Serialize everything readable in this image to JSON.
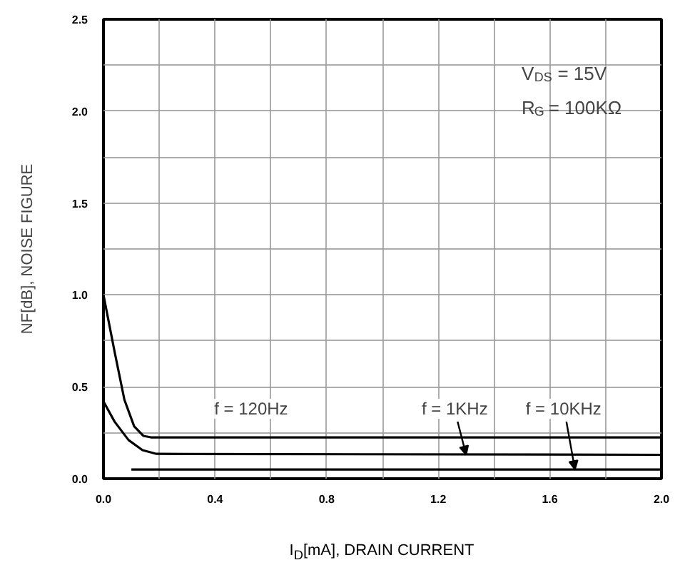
{
  "chart_data": {
    "type": "line",
    "xlabel": "I$_{D}$[mA], DRAIN CURRENT",
    "ylabel": "NF[dB], NOISE FIGURE",
    "x": [
      0,
      0.04,
      0.075,
      0.11,
      0.143,
      0.17,
      2.0
    ],
    "series": [
      {
        "color": "#000000",
        "values": [
          1.0,
          0.69,
          0.43,
          0.285,
          0.233,
          0.225,
          0.225
        ]
      },
      {
        "color": "#000000",
        "x": [
          0,
          0.04,
          0.09,
          0.14,
          0.19,
          2.0
        ],
        "values": [
          0.42,
          0.31,
          0.21,
          0.155,
          0.135,
          0.13
        ]
      },
      {
        "color": "#000000",
        "x": [
          0.1,
          2.0
        ],
        "values": [
          0.05,
          0.05
        ]
      }
    ],
    "xlim": [
      0,
      2.0
    ],
    "ylim": [
      0,
      2.5
    ],
    "xticks": [
      {
        "value": 0,
        "label": "0.0"
      },
      {
        "value": 0.2,
        "label": null
      },
      0.4,
      {
        "value": 0.6,
        "label": null
      },
      0.8,
      {
        "value": 1.0,
        "label": null
      },
      1.2,
      {
        "value": 1.4,
        "label": null
      },
      1.6,
      {
        "value": 1.8,
        "label": null
      },
      {
        "value": 2,
        "label": "2.0"
      }
    ],
    "yticks": [
      {
        "value": 0,
        "label": "0.0"
      },
      {
        "value": 0.25,
        "label": null
      },
      0.5,
      {
        "value": 0.75,
        "label": null
      },
      {
        "value": 1,
        "label": "1.0"
      },
      {
        "value": 1.25,
        "label": null
      },
      1.5,
      {
        "value": 1.75,
        "label": null
      },
      {
        "value": 2,
        "label": "2.0"
      },
      {
        "value": 2.25,
        "label": null
      },
      2.5
    ],
    "grid": true,
    "marker": "none",
    "line_style": "solid",
    "annotations": [
      {
        "text": "f = 120Hz",
        "x": 0.57,
        "y": 0.225
      },
      {
        "text": "f = 1KHz",
        "x": 1.3,
        "y": 0.13
      },
      {
        "text": "f = 10KHz",
        "x": 1.69,
        "y": 0.05
      },
      "V$_{DS}$ = 15V",
      "R$_{G}$ = 100KΩ"
    ]
  }
}
